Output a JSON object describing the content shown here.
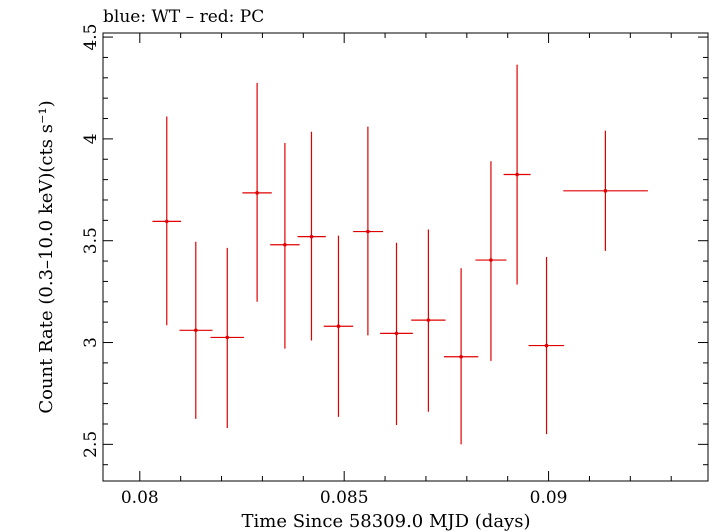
{
  "chart_data": {
    "type": "scatter",
    "title": "blue: WT – red: PC",
    "xlabel": "Time Since 58309.0 MJD (days)",
    "ylabel": "Count Rate (0.3–10.0 keV)(cts s⁻¹)",
    "xlim": [
      0.0791,
      0.0939
    ],
    "ylim": [
      2.32,
      4.52
    ],
    "x_ticks": [
      0.08,
      0.085,
      0.09
    ],
    "x_tick_labels": [
      "0.08",
      "0.085",
      "0.09"
    ],
    "y_ticks": [
      2.5,
      3,
      3.5,
      4,
      4.5
    ],
    "y_tick_labels": [
      "2.5",
      "3",
      "3.5",
      "4",
      "4.5"
    ],
    "grid": false,
    "series": [
      {
        "color": "#e00000",
        "points": [
          {
            "x": 0.08066,
            "xlo": 0.08031,
            "xhi": 0.08101,
            "y": 3.595,
            "ylo": 3.085,
            "yhi": 4.11
          },
          {
            "x": 0.08137,
            "xlo": 0.08097,
            "xhi": 0.08178,
            "y": 3.06,
            "ylo": 2.625,
            "yhi": 3.495
          },
          {
            "x": 0.08214,
            "xlo": 0.08173,
            "xhi": 0.08255,
            "y": 3.025,
            "ylo": 2.58,
            "yhi": 3.465
          },
          {
            "x": 0.08287,
            "xlo": 0.08251,
            "xhi": 0.08323,
            "y": 3.735,
            "ylo": 3.2,
            "yhi": 4.275
          },
          {
            "x": 0.08355,
            "xlo": 0.08319,
            "xhi": 0.08391,
            "y": 3.48,
            "ylo": 2.97,
            "yhi": 3.98
          },
          {
            "x": 0.0842,
            "xlo": 0.08386,
            "xhi": 0.08455,
            "y": 3.52,
            "ylo": 3.01,
            "yhi": 4.035
          },
          {
            "x": 0.08486,
            "xlo": 0.0845,
            "xhi": 0.08522,
            "y": 3.08,
            "ylo": 2.635,
            "yhi": 3.525
          },
          {
            "x": 0.08558,
            "xlo": 0.08522,
            "xhi": 0.08595,
            "y": 3.545,
            "ylo": 3.035,
            "yhi": 4.06
          },
          {
            "x": 0.08628,
            "xlo": 0.08588,
            "xhi": 0.08668,
            "y": 3.045,
            "ylo": 2.595,
            "yhi": 3.49
          },
          {
            "x": 0.08706,
            "xlo": 0.08664,
            "xhi": 0.08748,
            "y": 3.11,
            "ylo": 2.66,
            "yhi": 3.555
          },
          {
            "x": 0.08786,
            "xlo": 0.08744,
            "xhi": 0.08828,
            "y": 2.93,
            "ylo": 2.5,
            "yhi": 3.365
          },
          {
            "x": 0.08859,
            "xlo": 0.08821,
            "xhi": 0.08897,
            "y": 3.405,
            "ylo": 2.91,
            "yhi": 3.89
          },
          {
            "x": 0.08923,
            "xlo": 0.0889,
            "xhi": 0.08956,
            "y": 3.825,
            "ylo": 3.285,
            "yhi": 4.365
          },
          {
            "x": 0.08995,
            "xlo": 0.08951,
            "xhi": 0.09038,
            "y": 2.985,
            "ylo": 2.55,
            "yhi": 3.42
          },
          {
            "x": 0.09139,
            "xlo": 0.09036,
            "xhi": 0.09243,
            "y": 3.745,
            "ylo": 3.45,
            "yhi": 4.04
          }
        ]
      }
    ]
  }
}
